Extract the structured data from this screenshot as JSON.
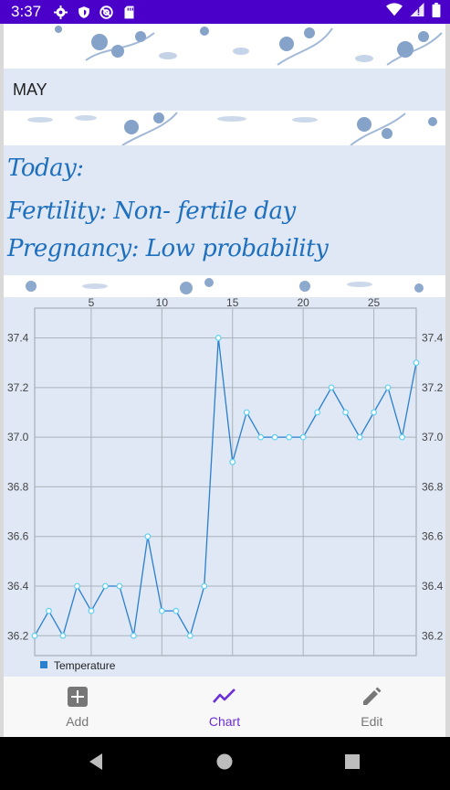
{
  "status_bar": {
    "time": "3:37",
    "icons": [
      "gear-icon",
      "shield-icon",
      "at-sign-icon",
      "sd-card-icon"
    ],
    "right_icons": [
      "wifi-icon",
      "no-signal-icon",
      "battery-icon"
    ]
  },
  "header": {
    "month": "MAY"
  },
  "info": {
    "today_label": "Today:",
    "fertility": "Fertility: Non- fertile day",
    "pregnancy": "Pregnancy: Low probability"
  },
  "chart_data": {
    "type": "line",
    "x_ticks": [
      5,
      10,
      15,
      20,
      25
    ],
    "y_ticks": [
      "36.2",
      "36.4",
      "36.6",
      "36.8",
      "37.0",
      "37.2",
      "37.4"
    ],
    "xlim": [
      1,
      28
    ],
    "ylim": [
      36.12,
      37.52
    ],
    "legend": "bottom-left",
    "grid": true,
    "series": [
      {
        "name": "Temperature",
        "x": [
          1,
          2,
          3,
          4,
          5,
          6,
          7,
          8,
          9,
          10,
          11,
          12,
          13,
          14,
          15,
          16,
          17,
          18,
          19,
          20,
          21,
          22,
          23,
          24,
          25,
          26,
          27,
          28
        ],
        "values": [
          36.2,
          36.3,
          36.2,
          36.4,
          36.3,
          36.4,
          36.4,
          36.2,
          36.6,
          36.3,
          36.3,
          36.2,
          36.4,
          37.4,
          36.9,
          37.1,
          37.0,
          37.0,
          37.0,
          37.0,
          37.1,
          37.2,
          37.1,
          37.0,
          37.1,
          37.2,
          37.0,
          37.3
        ]
      }
    ]
  },
  "nav": {
    "items": [
      {
        "label": "Add",
        "icon": "add-box-icon"
      },
      {
        "label": "Chart",
        "icon": "chart-line-icon"
      },
      {
        "label": "Edit",
        "icon": "pencil-icon"
      }
    ],
    "active_index": 1
  },
  "colors": {
    "status_bar": "#4a00c8",
    "panel": "#dfe8f4",
    "info_text": "#1e6fbe",
    "line": "#2a7fcf",
    "accent": "#6b2fd6"
  }
}
